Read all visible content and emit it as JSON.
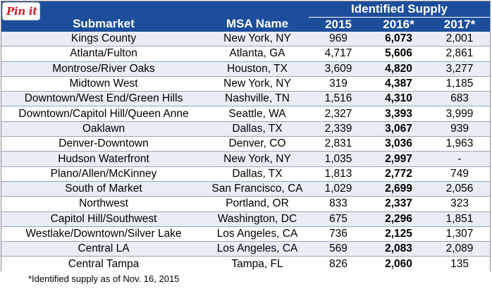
{
  "pin_button": {
    "label": "Pin it"
  },
  "header": {
    "group_label": "Identified Supply",
    "columns": [
      "Submarket",
      "MSA Name",
      "2015",
      "2016*",
      "2017*"
    ]
  },
  "rows": [
    {
      "submarket": "Kings County",
      "msa": "New York, NY",
      "y2015": "969",
      "y2016": "6,073",
      "y2017": "2,001"
    },
    {
      "submarket": "Atlanta/Fulton",
      "msa": "Atlanta, GA",
      "y2015": "4,717",
      "y2016": "5,606",
      "y2017": "2,861"
    },
    {
      "submarket": "Montrose/River Oaks",
      "msa": "Houston, TX",
      "y2015": "3,609",
      "y2016": "4,820",
      "y2017": "3,277"
    },
    {
      "submarket": "Midtown West",
      "msa": "New York, NY",
      "y2015": "319",
      "y2016": "4,387",
      "y2017": "1,185"
    },
    {
      "submarket": "Downtown/West End/Green Hills",
      "msa": "Nashville, TN",
      "y2015": "1,516",
      "y2016": "4,310",
      "y2017": "683"
    },
    {
      "submarket": "Downtown/Capitol Hill/Queen Anne",
      "msa": "Seattle, WA",
      "y2015": "2,327",
      "y2016": "3,393",
      "y2017": "3,999"
    },
    {
      "submarket": "Oaklawn",
      "msa": "Dallas, TX",
      "y2015": "2,339",
      "y2016": "3,067",
      "y2017": "939"
    },
    {
      "submarket": "Denver-Downtown",
      "msa": "Denver, CO",
      "y2015": "2,831",
      "y2016": "3,036",
      "y2017": "1,963"
    },
    {
      "submarket": "Hudson Waterfront",
      "msa": "New York, NY",
      "y2015": "1,035",
      "y2016": "2,997",
      "y2017": "-"
    },
    {
      "submarket": "Plano/Allen/McKinney",
      "msa": "Dallas, TX",
      "y2015": "1,813",
      "y2016": "2,772",
      "y2017": "749"
    },
    {
      "submarket": "South of Market",
      "msa": "San Francisco, CA",
      "y2015": "1,029",
      "y2016": "2,699",
      "y2017": "2,056"
    },
    {
      "submarket": "Northwest",
      "msa": "Portland, OR",
      "y2015": "833",
      "y2016": "2,337",
      "y2017": "323"
    },
    {
      "submarket": "Capitol Hill/Southwest",
      "msa": "Washington, DC",
      "y2015": "675",
      "y2016": "2,296",
      "y2017": "1,851"
    },
    {
      "submarket": "Westlake/Downtown/Silver Lake",
      "msa": "Los Angeles, CA",
      "y2015": "736",
      "y2016": "2,125",
      "y2017": "1,307"
    },
    {
      "submarket": "Central LA",
      "msa": "Los Angeles, CA",
      "y2015": "569",
      "y2016": "2,083",
      "y2017": "2,089"
    },
    {
      "submarket": "Central Tampa",
      "msa": "Tampa, FL",
      "y2015": "826",
      "y2016": "2,060",
      "y2017": "135"
    }
  ],
  "footnote": "*Identified supply as of Nov. 16, 2015",
  "colors": {
    "header_bg": "#1d4e9b",
    "stripe": "#e9edf5",
    "pin_red": "#cb2027"
  }
}
